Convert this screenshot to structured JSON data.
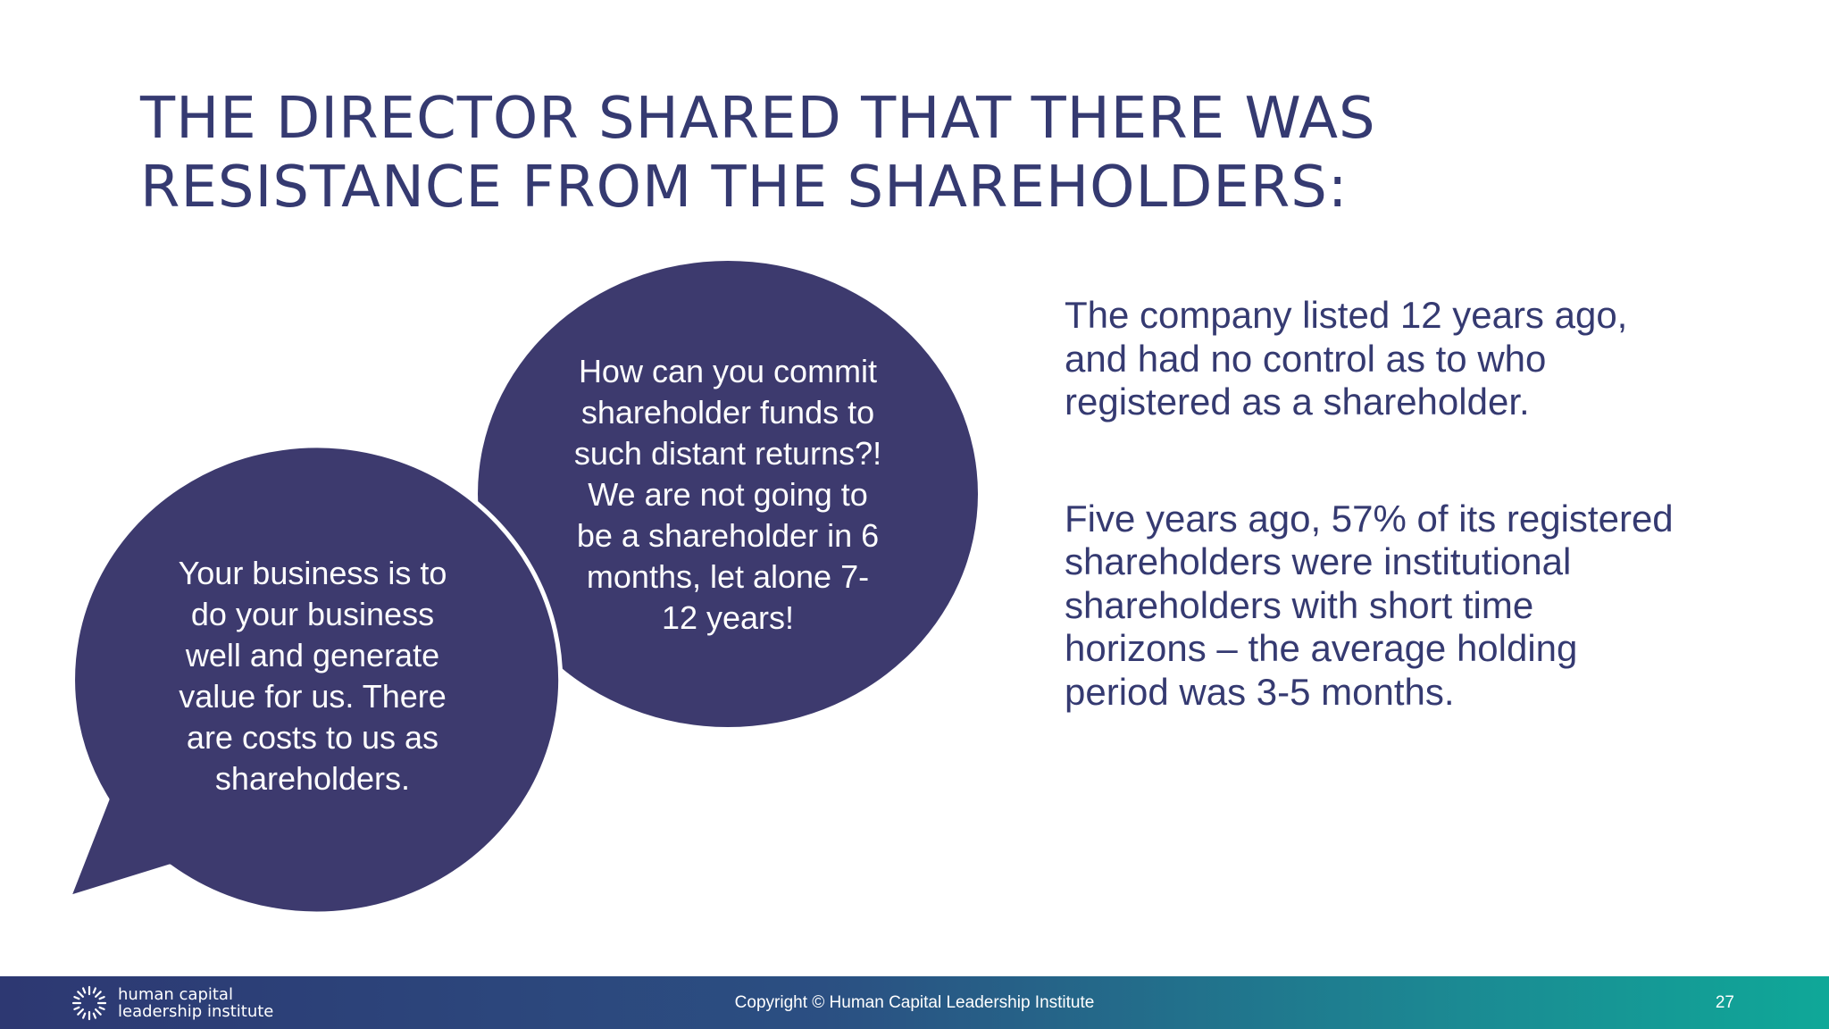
{
  "slide": {
    "title_lines": [
      "THE DIRECTOR SHARED THAT THERE WAS",
      "RESISTANCE FROM THE SHAREHOLDERS:"
    ],
    "bubble_right_lines": [
      "How can you commit",
      "shareholder funds to",
      "such distant returns?!",
      "We are not going to",
      "be a shareholder in 6",
      "months, let alone 7-",
      "12 years!"
    ],
    "bubble_left_lines": [
      "Your business is to",
      "do your business",
      "well and generate",
      "value for us. There",
      "are costs to us as",
      "shareholders."
    ],
    "paragraph1_lines": [
      "The company listed 12 years ago,",
      "and had no control as to who",
      "registered as a shareholder."
    ],
    "paragraph2_lines": [
      "Five years ago, 57% of its registered",
      "shareholders were institutional",
      "shareholders with short time",
      "horizons – the average holding",
      "period was 3-5 months."
    ],
    "bubble_color": "#3d3a6e",
    "text_color": "#353a71"
  },
  "footer": {
    "logo_icon": "sunburst-logo-icon",
    "logo_lines": [
      "human capital",
      "leadership institute"
    ],
    "copyright": "Copyright © Human Capital Leadership Institute",
    "page_number": "27",
    "gradient": [
      "#2d3872",
      "#0fa898"
    ]
  }
}
